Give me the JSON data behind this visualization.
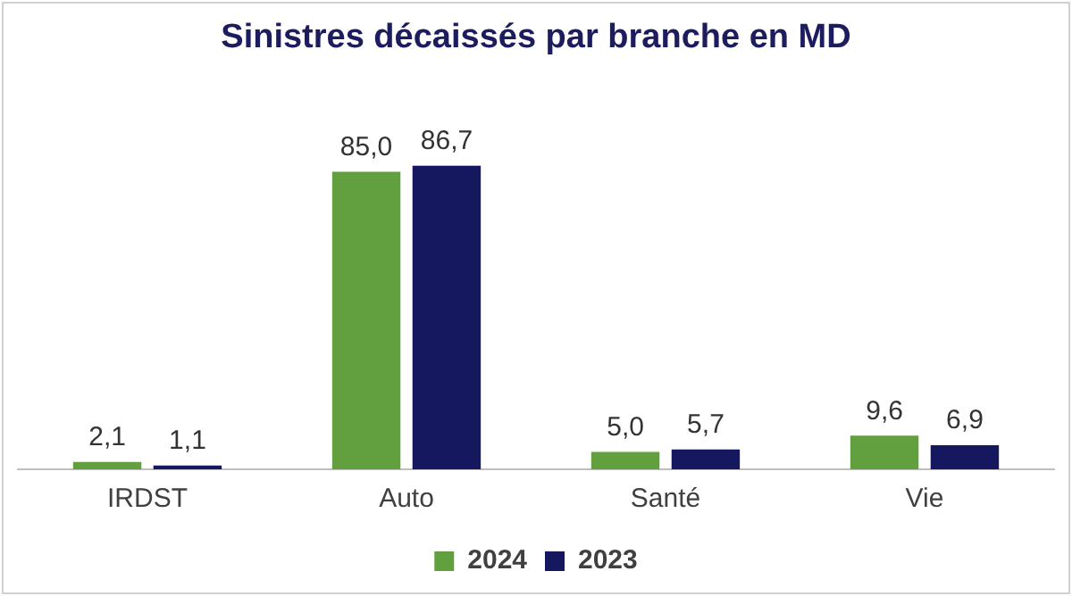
{
  "chart_data": {
    "type": "bar",
    "title": "Sinistres décaissés par branche en MD",
    "categories": [
      "IRDST",
      "Auto",
      "Santé",
      "Vie"
    ],
    "series": [
      {
        "name": "2024",
        "color": "#62a03f",
        "values": [
          2.1,
          85.0,
          5.0,
          9.6
        ],
        "value_labels": [
          "2,1",
          "85,0",
          "5,0",
          "9,6"
        ]
      },
      {
        "name": "2023",
        "color": "#15175f",
        "values": [
          1.1,
          86.7,
          5.7,
          6.9
        ],
        "value_labels": [
          "1,1",
          "86,7",
          "5,7",
          "6,9"
        ]
      }
    ],
    "grid": false,
    "legend": "bottom",
    "tick_labels": "x"
  }
}
